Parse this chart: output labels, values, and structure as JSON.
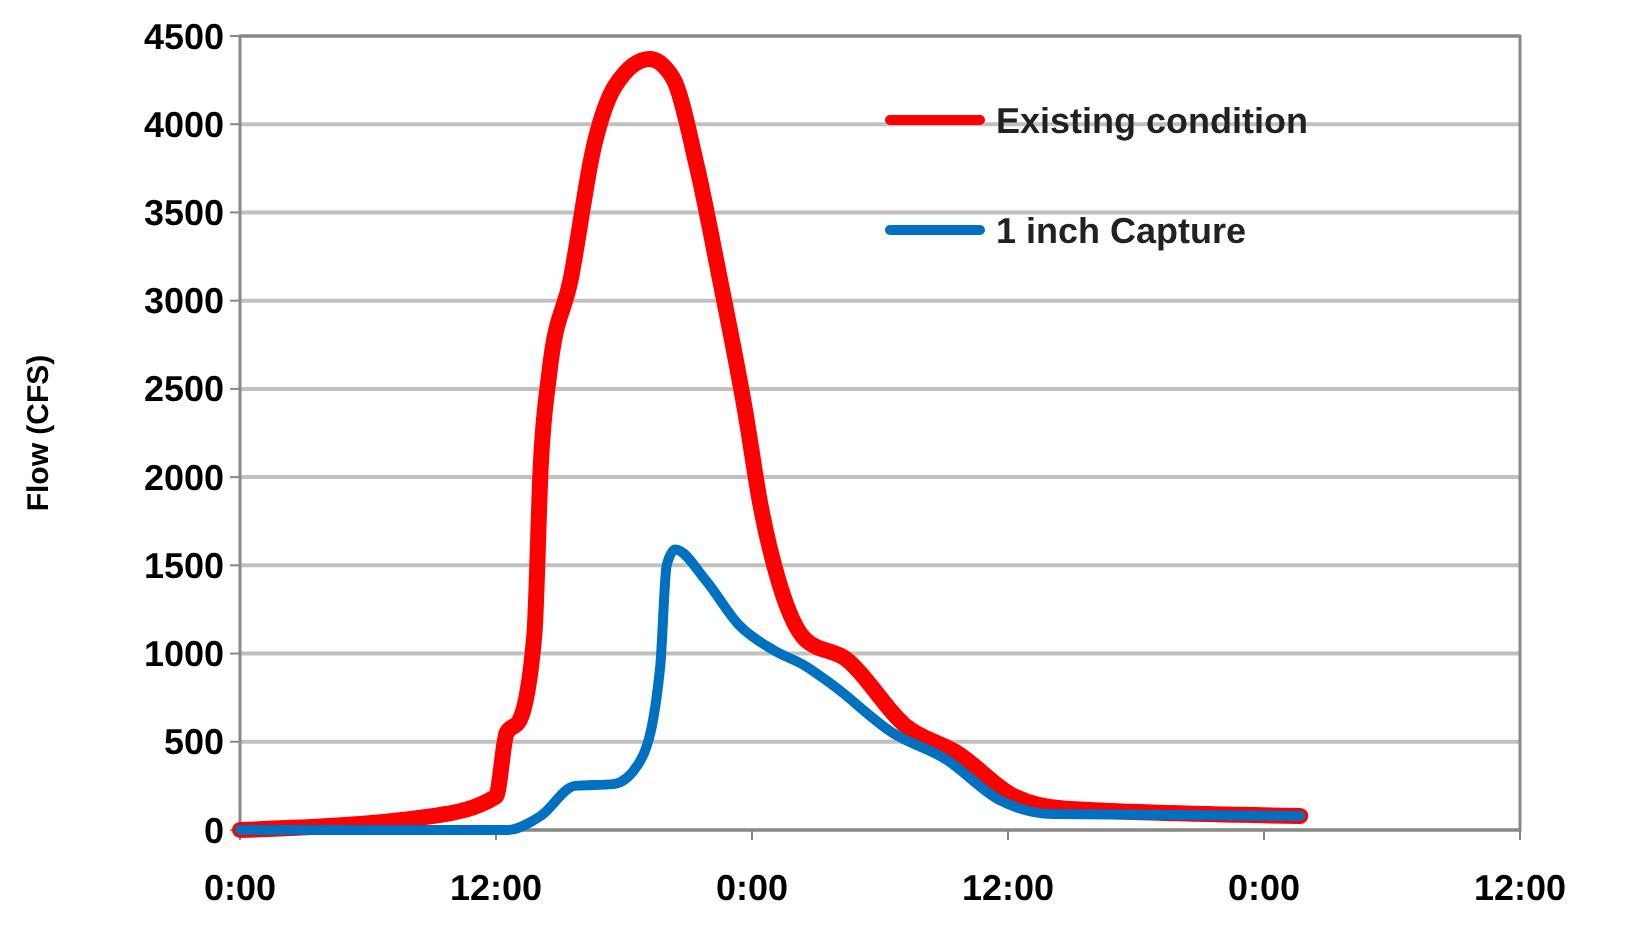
{
  "chart_data": {
    "type": "line",
    "ylabel": "Flow (CFS)",
    "xlim": [
      "2000-01-01T00:00",
      "2000-01-03T12:00"
    ],
    "ylim": [
      0,
      4500
    ],
    "xticks": [
      {
        "value": "2000-01-01T00:00",
        "label": "0:00"
      },
      {
        "value": "2000-01-01T12:00",
        "label": "12:00"
      },
      {
        "value": "2000-01-02T00:00",
        "label": "0:00"
      },
      {
        "value": "2000-01-02T12:00",
        "label": "12:00"
      },
      {
        "value": "2000-01-03T00:00",
        "label": "0:00"
      },
      {
        "value": "2000-01-03T12:00",
        "label": "12:00"
      }
    ],
    "yticks": [
      0,
      500,
      1000,
      1500,
      2000,
      2500,
      3000,
      3500,
      4000,
      4500
    ],
    "grid": "y",
    "legend": "top right",
    "marker": "none",
    "line_style": "solid",
    "series": [
      {
        "name": "Existing condition",
        "color": "#ff0000",
        "x": [
          "2000-01-01T00:00",
          "2000-01-01T09:06",
          "2000-01-01T12:00",
          "2000-01-01T12:30",
          "2000-01-01T13:06",
          "2000-01-01T13:48",
          "2000-01-01T14:06",
          "2000-01-01T14:30",
          "2000-01-01T15:30",
          "2000-01-01T16:36",
          "2000-01-01T17:36",
          "2000-01-01T19:12",
          "2000-01-01T20:18",
          "2000-01-01T21:24",
          "2000-01-01T22:30",
          "2000-01-01T23:42",
          "2000-01-02T00:24",
          "2000-01-02T01:18",
          "2000-01-02T02:30",
          "2000-01-02T04:24",
          "2000-01-02T07:12",
          "2000-01-02T09:42",
          "2000-01-02T12:18",
          "2000-01-02T14:42",
          "2000-01-03T01:42"
        ],
        "values": [
          0,
          80,
          190,
          550,
          620,
          1110,
          2070,
          2590,
          3120,
          3880,
          4220,
          4370,
          4260,
          3770,
          3120,
          2360,
          1840,
          1390,
          1080,
          970,
          590,
          430,
          190,
          120,
          80
        ]
      },
      {
        "name": "1 inch Capture",
        "color": "#0070c0",
        "x": [
          "2000-01-01T00:00",
          "2000-01-01T12:30",
          "2000-01-01T14:06",
          "2000-01-01T15:42",
          "2000-01-01T17:30",
          "2000-01-01T18:48",
          "2000-01-01T19:42",
          "2000-01-01T20:00",
          "2000-01-01T20:24",
          "2000-01-01T21:48",
          "2000-01-01T23:24",
          "2000-01-02T01:00",
          "2000-01-02T02:30",
          "2000-01-02T03:48",
          "2000-01-02T06:36",
          "2000-01-02T09:06",
          "2000-01-02T11:36",
          "2000-01-02T14:06",
          "2000-01-03T01:42"
        ],
        "values": [
          0,
          0,
          80,
          250,
          260,
          400,
          930,
          1500,
          1590,
          1420,
          1160,
          1020,
          930,
          820,
          550,
          400,
          170,
          90,
          80
        ]
      }
    ]
  }
}
